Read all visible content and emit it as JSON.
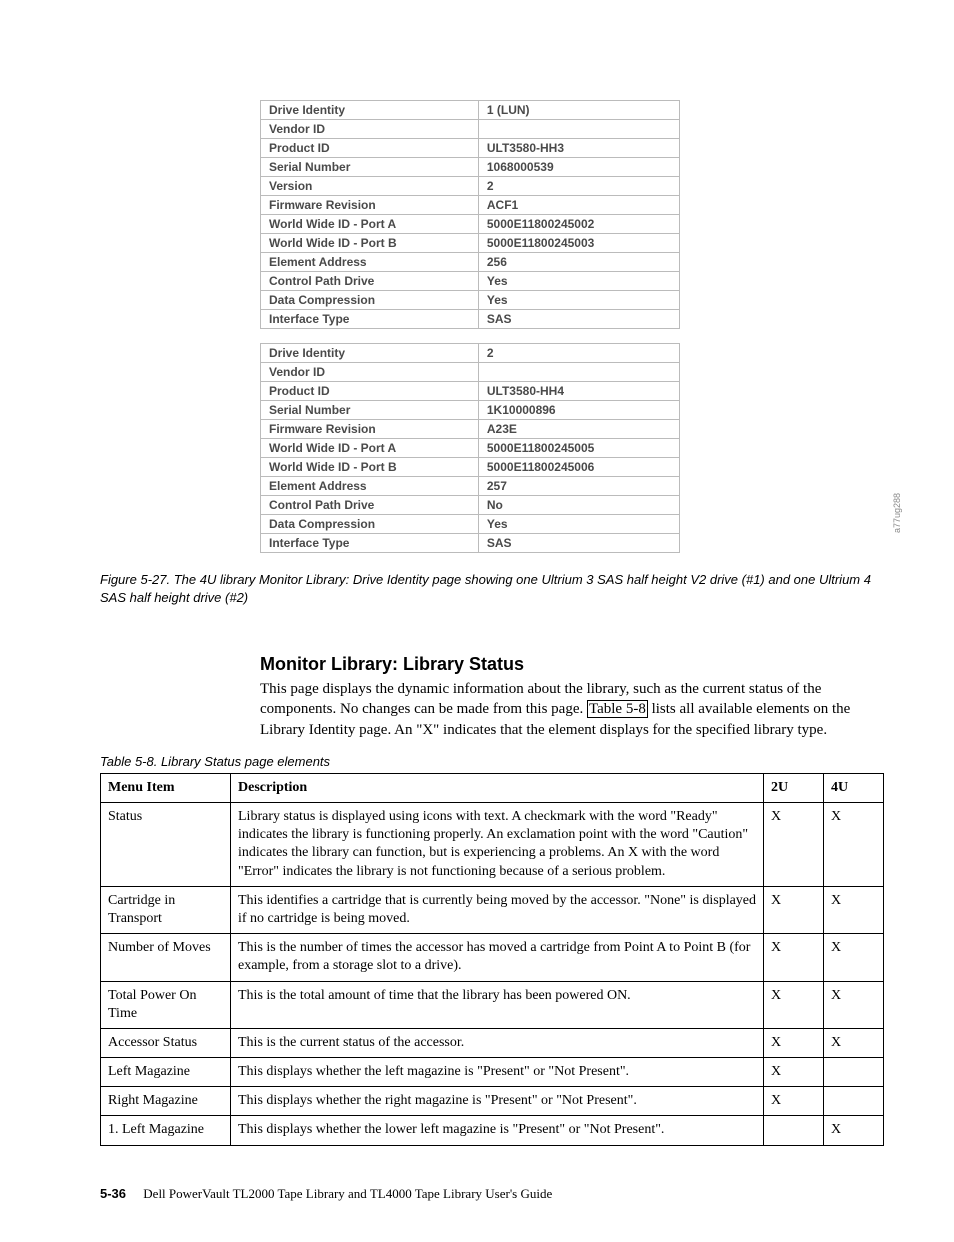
{
  "drive1": {
    "header_label": "Drive Identity",
    "header_value": "1 (LUN)",
    "rows": [
      {
        "label": "Vendor ID",
        "value": ""
      },
      {
        "label": "Product ID",
        "value": "ULT3580-HH3"
      },
      {
        "label": "Serial Number",
        "value": "1068000539"
      },
      {
        "label": "Version",
        "value": "2"
      },
      {
        "label": "Firmware Revision",
        "value": "ACF1"
      },
      {
        "label": "World Wide ID  - Port A",
        "value": "5000E11800245002"
      },
      {
        "label": "World Wide ID  - Port B",
        "value": "5000E11800245003"
      },
      {
        "label": "Element Address",
        "value": "256"
      },
      {
        "label": "Control Path Drive",
        "value": "Yes"
      },
      {
        "label": "Data Compression",
        "value": "Yes"
      },
      {
        "label": "Interface Type",
        "value": "SAS"
      }
    ]
  },
  "drive2": {
    "header_label": "Drive Identity",
    "header_value": "2",
    "rows": [
      {
        "label": "Vendor ID",
        "value": ""
      },
      {
        "label": "Product ID",
        "value": "ULT3580-HH4"
      },
      {
        "label": "Serial Number",
        "value": "1K10000896"
      },
      {
        "label": "Firmware Revision",
        "value": "A23E"
      },
      {
        "label": "World Wide ID  - Port A",
        "value": "5000E11800245005"
      },
      {
        "label": "World Wide ID  - Port B",
        "value": "5000E11800245006"
      },
      {
        "label": "Element Address",
        "value": "257"
      },
      {
        "label": "Control Path Drive",
        "value": "No"
      },
      {
        "label": "Data Compression",
        "value": "Yes"
      },
      {
        "label": "Interface Type",
        "value": "SAS"
      }
    ]
  },
  "side_code": "a77ug288",
  "figure_caption": "Figure 5-27. The 4U library Monitor Library: Drive Identity page showing one Ultrium 3 SAS half height V2 drive (#1) and one Ultrium 4 SAS half height drive (#2)",
  "section_heading": "Monitor Library: Library Status",
  "body_before_link": "This page displays the dynamic information about the library, such as the current status of the components. No changes can be made from this page. ",
  "body_link": "Table 5-8",
  "body_after_link": " lists all available elements on the Library Identity page. An \"X\" indicates that the element displays for the specified library type.",
  "table_caption": "Table 5-8. Library Status page elements",
  "elements_table": {
    "headers": [
      "Menu Item",
      "Description",
      "2U",
      "4U"
    ],
    "rows": [
      {
        "menu": "Status",
        "desc": "Library status is displayed using icons with text. A checkmark with the word \"Ready\" indicates the library is functioning properly. An exclamation point with the word \"Caution\" indicates the library can function, but is experiencing a problems. An X with the word \"Error\" indicates the library is not functioning because of a serious problem.",
        "u2": "X",
        "u4": "X"
      },
      {
        "menu": "Cartridge in Transport",
        "desc": "This identifies a cartridge that is currently being moved by the accessor. \"None\" is displayed if no cartridge is being moved.",
        "u2": "X",
        "u4": "X"
      },
      {
        "menu": "Number of Moves",
        "desc": "This is the number of times the accessor has moved a cartridge from Point A to Point B (for example, from a storage slot to a drive).",
        "u2": "X",
        "u4": "X"
      },
      {
        "menu": "Total Power On Time",
        "desc": "This is the total amount of time that the library has been powered ON.",
        "u2": "X",
        "u4": "X"
      },
      {
        "menu": "Accessor Status",
        "desc": "This is the current status of the accessor.",
        "u2": "X",
        "u4": "X"
      },
      {
        "menu": "Left Magazine",
        "desc": "This displays whether the left magazine is \"Present\" or \"Not Present\".",
        "u2": "X",
        "u4": ""
      },
      {
        "menu": "Right Magazine",
        "desc": "This displays whether the right magazine is \"Present\" or \"Not Present\".",
        "u2": "X",
        "u4": ""
      },
      {
        "menu": "1. Left Magazine",
        "desc": "This displays whether the lower left magazine is \"Present\" or \"Not Present\".",
        "u2": "",
        "u4": "X"
      }
    ]
  },
  "footer": {
    "page_num": "5-36",
    "title": "Dell PowerVault TL2000 Tape Library and TL4000 Tape Library User's Guide"
  }
}
